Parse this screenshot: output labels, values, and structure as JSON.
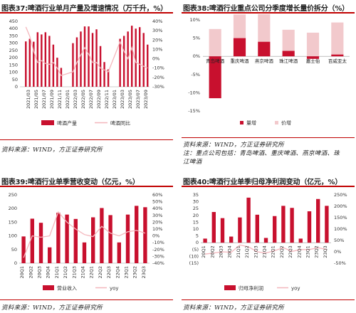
{
  "panels": {
    "p37": {
      "title": "图表37:啤酒行业单月产量及增速情况（万千升，%）",
      "source": "资料来源：WIND，方正证券研究所"
    },
    "p38": {
      "title": "图表38:啤酒行业重点公司分季度增长量价拆分（%）",
      "source": "资料来源：WIND，方正证券研究所",
      "note1": "注：重点公司包括：青岛啤酒、重庆啤酒、燕京啤酒、珠",
      "note2": "江啤酒"
    },
    "p39": {
      "title": "图表39:啤酒行业单季营收变动（亿元，%）",
      "source": "资料来源：WIND，方正证券研究所"
    },
    "p40": {
      "title": "图表40:啤酒行业单季归母净利润变动（亿元，%）",
      "source": "资料来源：WIND，方正证券研究所"
    }
  },
  "chart_data": [
    {
      "id": "c37",
      "type": "bar",
      "x": [
        "2021/01",
        "2021/02",
        "2021/03",
        "2021/04",
        "2021/05",
        "2021/06",
        "2021/07",
        "2021/08",
        "2021/09",
        "2021/10",
        "2021/11",
        "2021/12",
        "2022/01",
        "2022/02",
        "2022/03",
        "2022/04",
        "2022/05",
        "2022/06",
        "2022/07",
        "2022/08",
        "2022/09",
        "2022/10",
        "2022/11",
        "2022/12",
        "2023/01",
        "2023/02",
        "2023/03",
        "2023/04",
        "2023/05",
        "2023/06",
        "2023/07",
        "2023/08",
        "2023/09"
      ],
      "xticks": [
        "2021/03",
        "2021/05",
        "2021/07",
        "2021/09",
        "2021/11",
        "2022/01",
        "2022/03",
        "2022/05",
        "2022/07",
        "2022/09",
        "2022/11",
        "2023/01",
        "2023/03",
        "2023/05",
        "2023/07",
        "2023/09"
      ],
      "series": [
        {
          "name": "啤酒产量",
          "values": [
            null,
            312,
            330,
            310,
            375,
            360,
            375,
            350,
            290,
            200,
            130,
            null,
            null,
            300,
            340,
            380,
            415,
            415,
            370,
            395,
            280,
            170,
            120,
            null,
            null,
            330,
            350,
            380,
            420,
            400,
            410,
            370,
            290
          ]
        },
        {
          "name": "啤酒同比",
          "values": [
            null,
            34,
            24,
            8,
            -4,
            -2,
            -5,
            -6,
            -4,
            -10,
            -18,
            null,
            null,
            -14,
            -4,
            4,
            12,
            5,
            -4,
            -4,
            -10,
            -12,
            -14,
            null,
            null,
            18,
            8,
            0,
            12,
            -4,
            -6,
            -8,
            -10
          ]
        }
      ],
      "y_left": {
        "min": 0,
        "max": 450,
        "ticks": [
          0,
          50,
          100,
          150,
          200,
          250,
          300,
          350,
          400,
          450
        ]
      },
      "y_right": {
        "min": -30,
        "max": 40,
        "ticks": [
          -30,
          -20,
          -10,
          0,
          10,
          20,
          30,
          40
        ]
      }
    },
    {
      "id": "c38",
      "type": "bar",
      "categories": [
        "青岛啤酒",
        "重庆啤酒",
        "燕京啤酒",
        "珠江啤酒",
        "嘉士伯",
        "百威亚太"
      ],
      "series": [
        {
          "name": "量增",
          "values": [
            -11.5,
            5.0,
            4.0,
            1.5,
            -0.7,
            0.5
          ]
        },
        {
          "name": "价增",
          "values": [
            7.5,
            6.5,
            8.0,
            5.8,
            6.5,
            8.8
          ]
        }
      ],
      "ylim": [
        -15,
        10
      ],
      "yticks": [
        -15,
        -10,
        -5,
        0,
        5,
        10
      ]
    },
    {
      "id": "c39",
      "type": "bar",
      "categories": [
        "20Q1",
        "20Q2",
        "20Q3",
        "20Q4",
        "21Q1",
        "21Q2",
        "21Q3",
        "21Q4",
        "22Q1",
        "22Q2",
        "22Q3",
        "22Q4",
        "23Q1",
        "23Q2",
        "23Q3"
      ],
      "series": [
        {
          "name": "营业收入",
          "values": [
            98,
            163,
            148,
            58,
            185,
            178,
            162,
            76,
            168,
            202,
            176,
            76,
            178,
            210,
            205
          ]
        },
        {
          "name": "yoy",
          "values": [
            -32,
            0,
            -2,
            0,
            35,
            20,
            10,
            2,
            -1,
            14,
            4,
            0,
            6,
            8,
            4
          ]
        }
      ],
      "y_left": {
        "min": 0,
        "max": 250,
        "ticks": [
          0,
          50,
          100,
          150,
          200,
          250
        ]
      },
      "y_right": {
        "min": -40,
        "max": 60,
        "ticks": [
          -40,
          -30,
          -20,
          -10,
          0,
          10,
          20,
          30,
          40,
          50,
          60
        ]
      }
    },
    {
      "id": "c40",
      "type": "bar",
      "categories": [
        "20Q1",
        "20Q2",
        "20Q3",
        "20Q4",
        "21Q1",
        "21Q2",
        "21Q3",
        "21Q4",
        "22Q1",
        "22Q2",
        "22Q3",
        "22Q4",
        "23Q1",
        "23Q2",
        "23Q3"
      ],
      "series": [
        {
          "name": "归母净利润",
          "values": [
            3,
            22.5,
            18.0,
            4.5,
            18.5,
            33.0,
            20.5,
            3.5,
            19.5,
            27.0,
            25.5,
            3.0,
            23.0,
            32.0,
            27.0
          ]
        },
        {
          "name": "yoy",
          "values": [
            -10,
            -5,
            0,
            -2,
            30,
            22,
            0,
            -5,
            5,
            18,
            2,
            10,
            10,
            18,
            10
          ]
        }
      ],
      "y_left": {
        "min": -15,
        "max": 35,
        "ticks": [
          -15,
          -10,
          -5,
          0,
          5,
          10,
          15,
          20,
          25,
          30,
          35
        ],
        "tick_labels": [
          "(15)",
          "(10)",
          "(5)",
          "0",
          "5",
          "10",
          "15",
          "20",
          "25",
          "30",
          "35"
        ]
      },
      "y_right": {
        "min": -50,
        "max": 250,
        "ticks": [
          -50,
          0,
          50,
          100,
          150,
          200,
          250
        ]
      }
    }
  ]
}
